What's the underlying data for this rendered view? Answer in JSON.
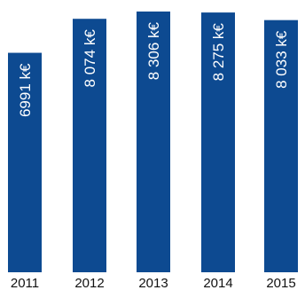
{
  "chart_data": {
    "type": "bar",
    "categories": [
      "2011",
      "2012",
      "2013",
      "2014",
      "2015"
    ],
    "values": [
      6991,
      8074,
      8306,
      8275,
      8033
    ],
    "data_labels": [
      "6991 k€",
      "8 074 k€",
      "8 306 k€",
      "8 275 k€",
      "8 033 k€"
    ],
    "ylim": [
      0,
      8306
    ],
    "grid": false,
    "legend": "none",
    "bar_color": "#0d4a91",
    "label_color": "#ffffff",
    "tick_color": "#111111"
  }
}
